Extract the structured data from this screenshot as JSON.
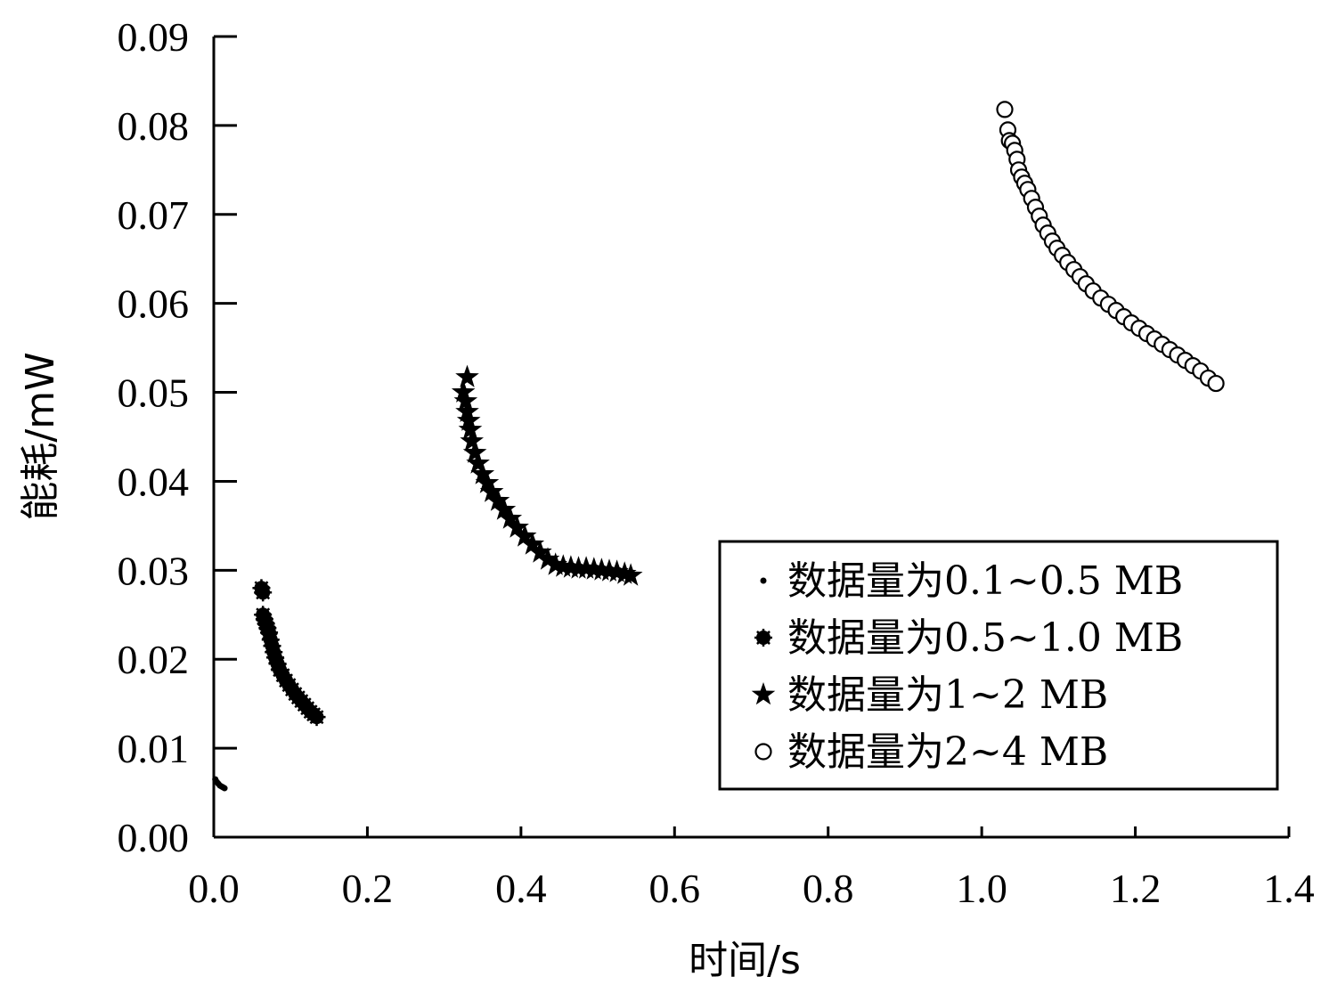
{
  "chart_data": {
    "type": "scatter",
    "title": "",
    "xlabel": "时间/s",
    "ylabel": "能耗/mW",
    "xlim": [
      0,
      1.4
    ],
    "ylim": [
      0,
      0.09
    ],
    "x_ticks": [
      "0.0",
      "0.2",
      "0.4",
      "0.6",
      "0.8",
      "1.0",
      "1.2",
      "1.4"
    ],
    "y_ticks": [
      "0.00",
      "0.01",
      "0.02",
      "0.03",
      "0.04",
      "0.05",
      "0.06",
      "0.07",
      "0.08",
      "0.09"
    ],
    "grid": false,
    "legend_position": "lower-right",
    "series": [
      {
        "name": "数据量为0.1~0.5 MB",
        "marker": "dot",
        "points": [
          [
            0.002,
            0.0065
          ],
          [
            0.004,
            0.0062
          ],
          [
            0.006,
            0.006
          ],
          [
            0.008,
            0.0058
          ],
          [
            0.01,
            0.0057
          ],
          [
            0.012,
            0.0056
          ],
          [
            0.014,
            0.0055
          ]
        ]
      },
      {
        "name": "数据量为0.5~1.0 MB",
        "marker": "asterisk",
        "points": [
          [
            0.062,
            0.028
          ],
          [
            0.064,
            0.0275
          ],
          [
            0.064,
            0.025
          ],
          [
            0.066,
            0.0245
          ],
          [
            0.068,
            0.024
          ],
          [
            0.07,
            0.0235
          ],
          [
            0.072,
            0.023
          ],
          [
            0.074,
            0.0222
          ],
          [
            0.076,
            0.0215
          ],
          [
            0.078,
            0.0208
          ],
          [
            0.08,
            0.0202
          ],
          [
            0.083,
            0.0195
          ],
          [
            0.086,
            0.0188
          ],
          [
            0.09,
            0.0182
          ],
          [
            0.094,
            0.0176
          ],
          [
            0.098,
            0.0171
          ],
          [
            0.102,
            0.0166
          ],
          [
            0.106,
            0.0161
          ],
          [
            0.11,
            0.0157
          ],
          [
            0.114,
            0.0153
          ],
          [
            0.118,
            0.0149
          ],
          [
            0.122,
            0.0145
          ],
          [
            0.126,
            0.0141
          ],
          [
            0.13,
            0.0138
          ],
          [
            0.134,
            0.0135
          ]
        ]
      },
      {
        "name": "数据量为1~2 MB",
        "marker": "star",
        "points": [
          [
            0.33,
            0.0517
          ],
          [
            0.325,
            0.05
          ],
          [
            0.328,
            0.049
          ],
          [
            0.33,
            0.0478
          ],
          [
            0.332,
            0.0468
          ],
          [
            0.334,
            0.0458
          ],
          [
            0.336,
            0.0445
          ],
          [
            0.34,
            0.0432
          ],
          [
            0.344,
            0.042
          ],
          [
            0.35,
            0.0408
          ],
          [
            0.356,
            0.0398
          ],
          [
            0.362,
            0.0388
          ],
          [
            0.37,
            0.0378
          ],
          [
            0.378,
            0.0368
          ],
          [
            0.386,
            0.0358
          ],
          [
            0.395,
            0.0348
          ],
          [
            0.405,
            0.0338
          ],
          [
            0.415,
            0.0329
          ],
          [
            0.425,
            0.032
          ],
          [
            0.435,
            0.0312
          ],
          [
            0.445,
            0.0306
          ],
          [
            0.455,
            0.0304
          ],
          [
            0.465,
            0.0303
          ],
          [
            0.475,
            0.0302
          ],
          [
            0.485,
            0.0302
          ],
          [
            0.495,
            0.0301
          ],
          [
            0.505,
            0.03
          ],
          [
            0.515,
            0.0299
          ],
          [
            0.525,
            0.0298
          ],
          [
            0.535,
            0.0296
          ],
          [
            0.543,
            0.0294
          ]
        ]
      },
      {
        "name": "数据量为2~4 MB",
        "marker": "circle",
        "points": [
          [
            1.03,
            0.0818
          ],
          [
            1.034,
            0.0795
          ],
          [
            1.036,
            0.0783
          ],
          [
            1.04,
            0.078
          ],
          [
            1.043,
            0.0772
          ],
          [
            1.046,
            0.0762
          ],
          [
            1.048,
            0.075
          ],
          [
            1.052,
            0.0742
          ],
          [
            1.056,
            0.0735
          ],
          [
            1.06,
            0.0728
          ],
          [
            1.065,
            0.0718
          ],
          [
            1.07,
            0.0708
          ],
          [
            1.075,
            0.0698
          ],
          [
            1.08,
            0.0688
          ],
          [
            1.086,
            0.0679
          ],
          [
            1.092,
            0.067
          ],
          [
            1.098,
            0.0662
          ],
          [
            1.105,
            0.0654
          ],
          [
            1.112,
            0.0646
          ],
          [
            1.12,
            0.0638
          ],
          [
            1.128,
            0.063
          ],
          [
            1.136,
            0.0622
          ],
          [
            1.145,
            0.0614
          ],
          [
            1.155,
            0.0606
          ],
          [
            1.165,
            0.0599
          ],
          [
            1.175,
            0.0592
          ],
          [
            1.185,
            0.0585
          ],
          [
            1.195,
            0.0578
          ],
          [
            1.205,
            0.0572
          ],
          [
            1.215,
            0.0566
          ],
          [
            1.225,
            0.056
          ],
          [
            1.235,
            0.0554
          ],
          [
            1.245,
            0.0548
          ],
          [
            1.255,
            0.0542
          ],
          [
            1.265,
            0.0536
          ],
          [
            1.275,
            0.053
          ],
          [
            1.285,
            0.0524
          ],
          [
            1.295,
            0.0516
          ],
          [
            1.305,
            0.051
          ]
        ]
      }
    ]
  }
}
